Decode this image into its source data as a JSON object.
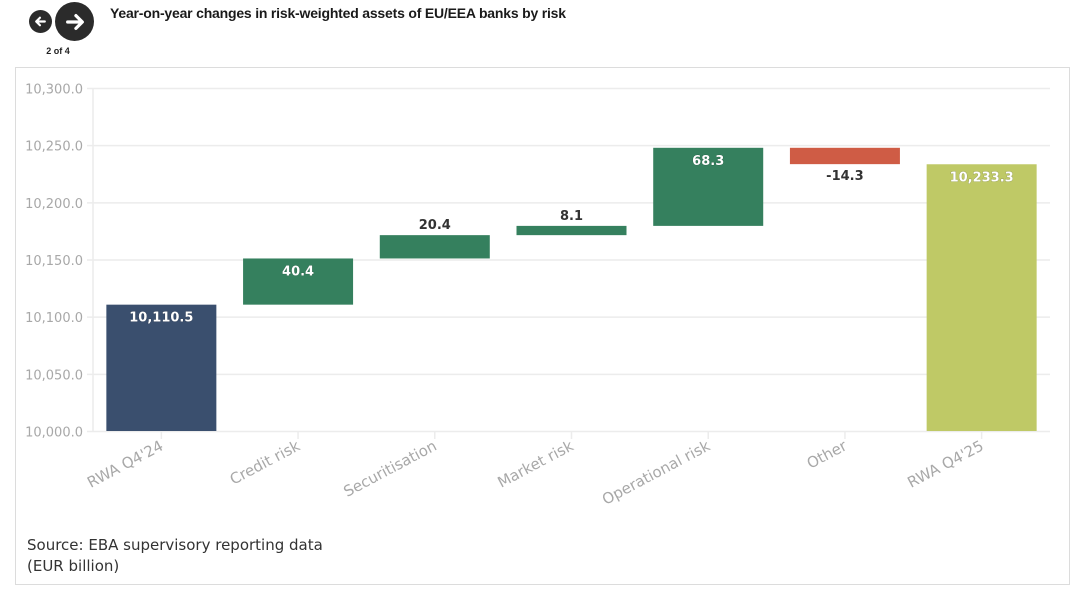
{
  "header": {
    "title": "Year-on-year changes in risk-weighted assets of EU/EEA banks by risk",
    "page_counter": "2 of 4",
    "prev_icon": "arrow-left-icon",
    "next_icon": "arrow-right-icon"
  },
  "footer": {
    "source": "Source: EBA supervisory reporting data",
    "unit": "(EUR billion)"
  },
  "colors": {
    "start_total": "#3a4f6e",
    "increase": "#35805e",
    "decrease": "#cf5c45",
    "end_total": "#bfc966",
    "grid": "#ececec",
    "tick_label": "#a8a8a8",
    "label_dark": "#333333",
    "label_light": "#ffffff"
  },
  "chart_data": {
    "type": "waterfall",
    "title": "Year-on-year changes in risk-weighted assets of EU/EEA banks by risk",
    "categories": [
      "RWA Q4'24",
      "Credit risk",
      "Securitisation",
      "Market risk",
      "Operational risk",
      "Other",
      "RWA Q4'25"
    ],
    "values": [
      10110.5,
      40.4,
      20.4,
      8.1,
      68.3,
      -14.3,
      10233.3
    ],
    "kinds": [
      "total",
      "delta",
      "delta",
      "delta",
      "delta",
      "delta",
      "total"
    ],
    "data_labels": [
      "10,110.5",
      "40.4",
      "20.4",
      "8.1",
      "68.3",
      "-14.3",
      "10,233.3"
    ],
    "ylim": [
      10000,
      10300
    ],
    "yticks": [
      10000,
      10050,
      10100,
      10150,
      10200,
      10250,
      10300
    ],
    "ytick_labels": [
      "10,000.0",
      "10,050.0",
      "10,100.0",
      "10,150.0",
      "10,200.0",
      "10,250.0",
      "10,300.0"
    ],
    "xlabel": "",
    "ylabel": "",
    "grid": true,
    "legend": "none"
  }
}
